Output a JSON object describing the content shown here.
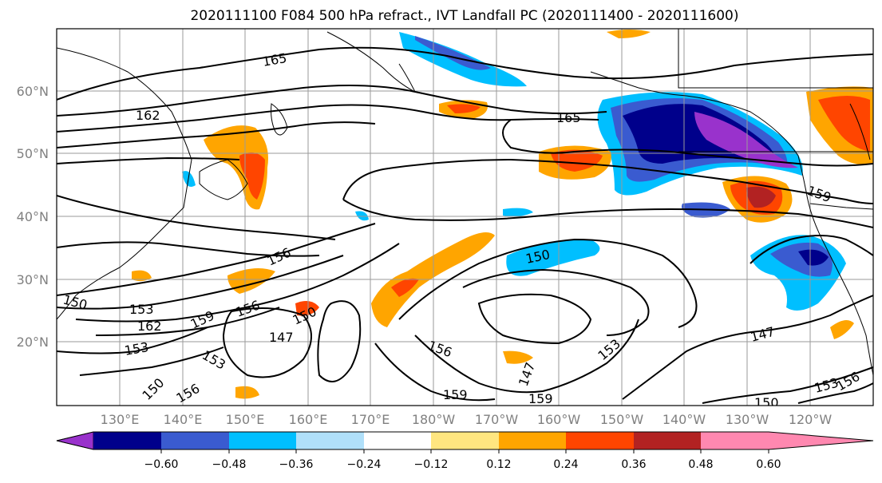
{
  "title": "2020111100 F084 500 hPa refract., IVT Landfall PC (2020111400 - 2020111600)",
  "lat_labels": [
    "60°N",
    "50°N",
    "40°N",
    "30°N",
    "20°N"
  ],
  "lon_labels": [
    "130°E",
    "140°E",
    "150°E",
    "160°E",
    "170°E",
    "180°W",
    "170°W",
    "160°W",
    "150°W",
    "140°W",
    "130°W",
    "120°W"
  ],
  "contour_labels": [
    "165",
    "162",
    "165",
    "159",
    "156",
    "150",
    "150",
    "153",
    "162",
    "159",
    "156",
    "150",
    "147",
    "153",
    "153",
    "150",
    "156",
    "156",
    "159",
    "159",
    "153",
    "147",
    "150",
    "153",
    "156",
    "147"
  ],
  "colorbar": {
    "ticks": [
      "−0.60",
      "−0.48",
      "−0.36",
      "−0.24",
      "−0.12",
      "0.12",
      "0.24",
      "0.36",
      "0.48",
      "0.60"
    ],
    "colors": [
      "#9932cc",
      "#00008b",
      "#3a5bd0",
      "#00bfff",
      "#b0e0fa",
      "#ffffff",
      "#ffe680",
      "#ffa500",
      "#ff4500",
      "#b22222",
      "#ff88b0"
    ]
  },
  "map_data": {
    "lon_range": [
      "125°E",
      "115°W"
    ],
    "lat_range": [
      "10°N",
      "70°N"
    ],
    "grid": true
  }
}
